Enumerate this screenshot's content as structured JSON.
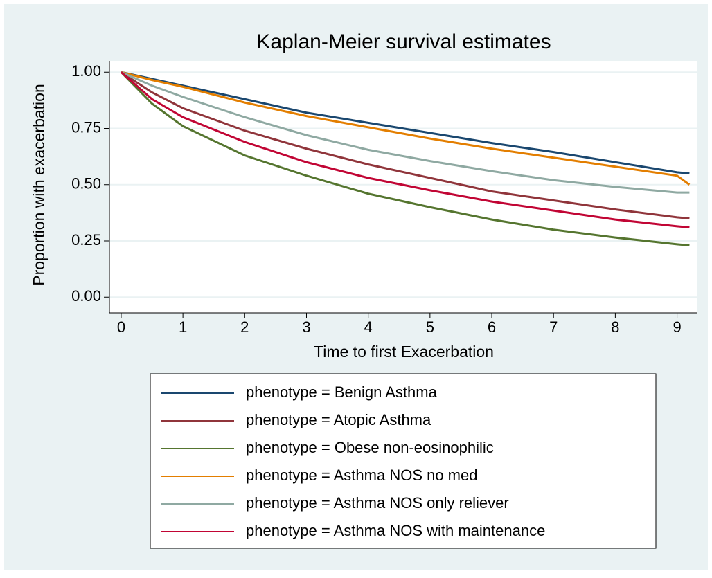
{
  "chart_data": {
    "type": "line",
    "title": "Kaplan-Meier survival estimates",
    "x_label": "Time to first Exacerbation",
    "y_label": "Proportion with exacerbation",
    "x": [
      0,
      0.5,
      1,
      2,
      3,
      4,
      5,
      6,
      7,
      8,
      9,
      9.2
    ],
    "series": [
      {
        "name": "phenotype = Benign Asthma",
        "color": "#1a476f",
        "values": [
          1,
          0.97,
          0.94,
          0.88,
          0.82,
          0.775,
          0.73,
          0.685,
          0.645,
          0.6,
          0.555,
          0.55
        ]
      },
      {
        "name": "phenotype = Atopic Asthma",
        "color": "#90353b",
        "values": [
          1,
          0.91,
          0.84,
          0.74,
          0.66,
          0.59,
          0.53,
          0.47,
          0.43,
          0.39,
          0.355,
          0.35
        ]
      },
      {
        "name": "phenotype = Obese non-eosinophilic",
        "color": "#55752f",
        "values": [
          1,
          0.86,
          0.76,
          0.63,
          0.54,
          0.46,
          0.4,
          0.345,
          0.3,
          0.265,
          0.235,
          0.23
        ]
      },
      {
        "name": "phenotype = Asthma NOS no med",
        "color": "#e37e00",
        "values": [
          1,
          0.965,
          0.935,
          0.865,
          0.805,
          0.755,
          0.705,
          0.66,
          0.62,
          0.58,
          0.54,
          0.5
        ]
      },
      {
        "name": "phenotype = Asthma NOS only reliever",
        "color": "#8fa9a2",
        "values": [
          1,
          0.94,
          0.89,
          0.8,
          0.72,
          0.655,
          0.605,
          0.56,
          0.52,
          0.49,
          0.465,
          0.465
        ]
      },
      {
        "name": "phenotype = Asthma NOS with maintenance",
        "color": "#c10534",
        "values": [
          1,
          0.88,
          0.8,
          0.69,
          0.6,
          0.53,
          0.475,
          0.425,
          0.385,
          0.345,
          0.315,
          0.31
        ]
      }
    ],
    "xlim": [
      -0.19,
      9.33
    ],
    "ylim": [
      -0.07,
      1.05
    ],
    "xticks": [
      0,
      1,
      2,
      3,
      4,
      5,
      6,
      7,
      8,
      9
    ],
    "yticks": [
      {
        "value": 0,
        "label": "0.00"
      },
      {
        "value": 0.25,
        "label": "0.25"
      },
      {
        "value": 0.5,
        "label": "0.50"
      },
      {
        "value": 0.75,
        "label": "0.75"
      },
      {
        "value": 1,
        "label": "1.00"
      }
    ],
    "grid": true
  }
}
